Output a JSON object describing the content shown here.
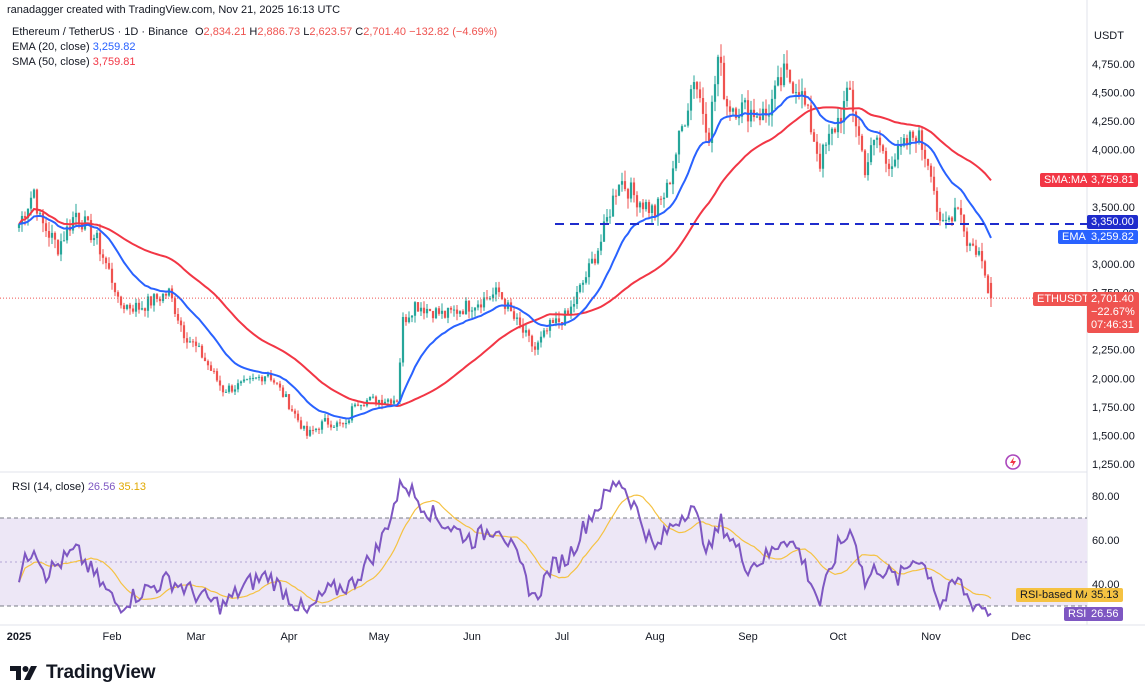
{
  "header": {
    "creator_line": "ranadagger created with TradingView.com, Nov 21, 2025 16:13 UTC",
    "symbol_line": "Ethereum / TetherUS · 1D · Binance",
    "ohlc": {
      "o_label": "O",
      "o": "2,834.21",
      "h_label": "H",
      "h": "2,886.73",
      "l_label": "L",
      "l": "2,623.57",
      "c_label": "C",
      "c": "2,701.40",
      "change": "−132.82 (−4.69%)"
    },
    "ema_line": {
      "label": "EMA (20, close)",
      "value": "3,259.82"
    },
    "sma_line": {
      "label": "SMA (50, close)",
      "value": "3,759.81"
    },
    "rsi_line": {
      "label": "RSI (14, close)",
      "value": "26.56",
      "ma": "35.13"
    }
  },
  "price_axis": {
    "currency": "USDT",
    "ticks": [
      "4,750.00",
      "4,500.00",
      "4,250.00",
      "4,000.00",
      "3,750.00",
      "3,500.00",
      "3,250.00",
      "3,000.00",
      "2,750.00",
      "2,500.00",
      "2,250.00",
      "2,000.00",
      "1,750.00",
      "1,500.00",
      "1,250.00"
    ]
  },
  "rsi_axis": {
    "ticks": [
      "80.00",
      "60.00",
      "40.00"
    ]
  },
  "time_axis": [
    "2025",
    "Feb",
    "Mar",
    "Apr",
    "May",
    "Jun",
    "Jul",
    "Aug",
    "Sep",
    "Oct",
    "Nov",
    "Dec"
  ],
  "labels": {
    "sma_tag": "SMA:MA",
    "sma_value": "3,759.81",
    "level_value": "3,350.00",
    "ema_tag": "EMA",
    "ema_value": "3,259.82",
    "sym_tag": "ETHUSDT",
    "price": "2,701.40",
    "pct": "−22.67%",
    "countdown": "07:46:31",
    "rsi_ma_tag": "RSI-based MA",
    "rsi_ma_value": "35.13",
    "rsi_tag": "RSI",
    "rsi_value": "26.56"
  },
  "colors": {
    "up": "#26a69a",
    "down": "#ef5350",
    "ema": "#2962ff",
    "sma": "#f23645",
    "rsi": "#7e57c2",
    "rsi_ma": "#f5c242",
    "level": "#1f2ccc",
    "band": "#ede7f6"
  },
  "branding": {
    "name": "TradingView"
  },
  "chart_data": {
    "type": "candlestick",
    "timeframe": "1D",
    "price_range": [
      1200,
      4950
    ],
    "rsi_range": [
      20,
      90
    ],
    "horizontal_line": 3350,
    "last_close": 2701.4,
    "ema20_last": 3259.82,
    "sma50_last": 3759.81,
    "rsi_last": 26.56,
    "rsi_ma_last": 35.13,
    "rsi_bands": [
      70,
      30
    ],
    "price_anchors": [
      [
        "2025-01-01",
        3350
      ],
      [
        "2025-01-06",
        3650
      ],
      [
        "2025-01-08",
        3380
      ],
      [
        "2025-01-14",
        3150
      ],
      [
        "2025-01-20",
        3450
      ],
      [
        "2025-01-27",
        3200
      ],
      [
        "2025-02-02",
        2800
      ],
      [
        "2025-02-03",
        2650
      ],
      [
        "2025-02-10",
        2620
      ],
      [
        "2025-02-20",
        2750
      ],
      [
        "2025-02-25",
        2400
      ],
      [
        "2025-03-03",
        2200
      ],
      [
        "2025-03-10",
        1900
      ],
      [
        "2025-03-18",
        1950
      ],
      [
        "2025-03-25",
        2050
      ],
      [
        "2025-03-31",
        1820
      ],
      [
        "2025-04-07",
        1500
      ],
      [
        "2025-04-13",
        1620
      ],
      [
        "2025-04-20",
        1580
      ],
      [
        "2025-04-23",
        1800
      ],
      [
        "2025-05-07",
        1820
      ],
      [
        "2025-05-09",
        2500
      ],
      [
        "2025-05-13",
        2650
      ],
      [
        "2025-05-23",
        2550
      ],
      [
        "2025-06-10",
        2750
      ],
      [
        "2025-06-15",
        2520
      ],
      [
        "2025-06-22",
        2250
      ],
      [
        "2025-06-27",
        2450
      ],
      [
        "2025-07-03",
        2550
      ],
      [
        "2025-07-10",
        2950
      ],
      [
        "2025-07-14",
        3200
      ],
      [
        "2025-07-20",
        3750
      ],
      [
        "2025-07-25",
        3600
      ],
      [
        "2025-08-01",
        3450
      ],
      [
        "2025-08-05",
        3650
      ],
      [
        "2025-08-11",
        4300
      ],
      [
        "2025-08-14",
        4650
      ],
      [
        "2025-08-19",
        4150
      ],
      [
        "2025-08-22",
        4800
      ],
      [
        "2025-08-25",
        4400
      ],
      [
        "2025-09-01",
        4350
      ],
      [
        "2025-09-07",
        4300
      ],
      [
        "2025-09-13",
        4650
      ],
      [
        "2025-09-18",
        4550
      ],
      [
        "2025-09-22",
        4200
      ],
      [
        "2025-09-25",
        3900
      ],
      [
        "2025-09-30",
        4200
      ],
      [
        "2025-10-05",
        4500
      ],
      [
        "2025-10-10",
        3850
      ],
      [
        "2025-10-14",
        4100
      ],
      [
        "2025-10-17",
        3900
      ],
      [
        "2025-10-21",
        3950
      ],
      [
        "2025-10-27",
        4150
      ],
      [
        "2025-11-01",
        3850
      ],
      [
        "2025-11-04",
        3300
      ],
      [
        "2025-11-07",
        3400
      ],
      [
        "2025-11-10",
        3550
      ],
      [
        "2025-11-13",
        3200
      ],
      [
        "2025-11-17",
        3100
      ],
      [
        "2025-11-21",
        2701
      ]
    ],
    "rsi_anchors": [
      [
        "2025-01-01",
        44
      ],
      [
        "2025-01-06",
        58
      ],
      [
        "2025-01-10",
        45
      ],
      [
        "2025-01-20",
        55
      ],
      [
        "2025-02-03",
        30
      ],
      [
        "2025-02-10",
        36
      ],
      [
        "2025-02-20",
        42
      ],
      [
        "2025-03-03",
        34
      ],
      [
        "2025-03-10",
        30
      ],
      [
        "2025-03-18",
        40
      ],
      [
        "2025-03-25",
        44
      ],
      [
        "2025-04-07",
        26
      ],
      [
        "2025-04-13",
        36
      ],
      [
        "2025-04-22",
        40
      ],
      [
        "2025-05-01",
        57
      ],
      [
        "2025-05-09",
        87
      ],
      [
        "2025-05-13",
        80
      ],
      [
        "2025-05-20",
        70
      ],
      [
        "2025-06-01",
        60
      ],
      [
        "2025-06-10",
        67
      ],
      [
        "2025-06-15",
        54
      ],
      [
        "2025-06-22",
        33
      ],
      [
        "2025-06-27",
        47
      ],
      [
        "2025-07-03",
        52
      ],
      [
        "2025-07-10",
        70
      ],
      [
        "2025-07-20",
        88
      ],
      [
        "2025-07-25",
        76
      ],
      [
        "2025-08-01",
        55
      ],
      [
        "2025-08-05",
        64
      ],
      [
        "2025-08-13",
        76
      ],
      [
        "2025-08-19",
        55
      ],
      [
        "2025-08-23",
        68
      ],
      [
        "2025-09-01",
        48
      ],
      [
        "2025-09-08",
        53
      ],
      [
        "2025-09-13",
        62
      ],
      [
        "2025-09-18",
        55
      ],
      [
        "2025-09-25",
        31
      ],
      [
        "2025-10-01",
        57
      ],
      [
        "2025-10-06",
        65
      ],
      [
        "2025-10-10",
        40
      ],
      [
        "2025-10-14",
        48
      ],
      [
        "2025-10-21",
        42
      ],
      [
        "2025-10-27",
        53
      ],
      [
        "2025-11-01",
        44
      ],
      [
        "2025-11-04",
        30
      ],
      [
        "2025-11-10",
        42
      ],
      [
        "2025-11-14",
        32
      ],
      [
        "2025-11-18",
        30
      ],
      [
        "2025-11-21",
        26.56
      ]
    ]
  }
}
